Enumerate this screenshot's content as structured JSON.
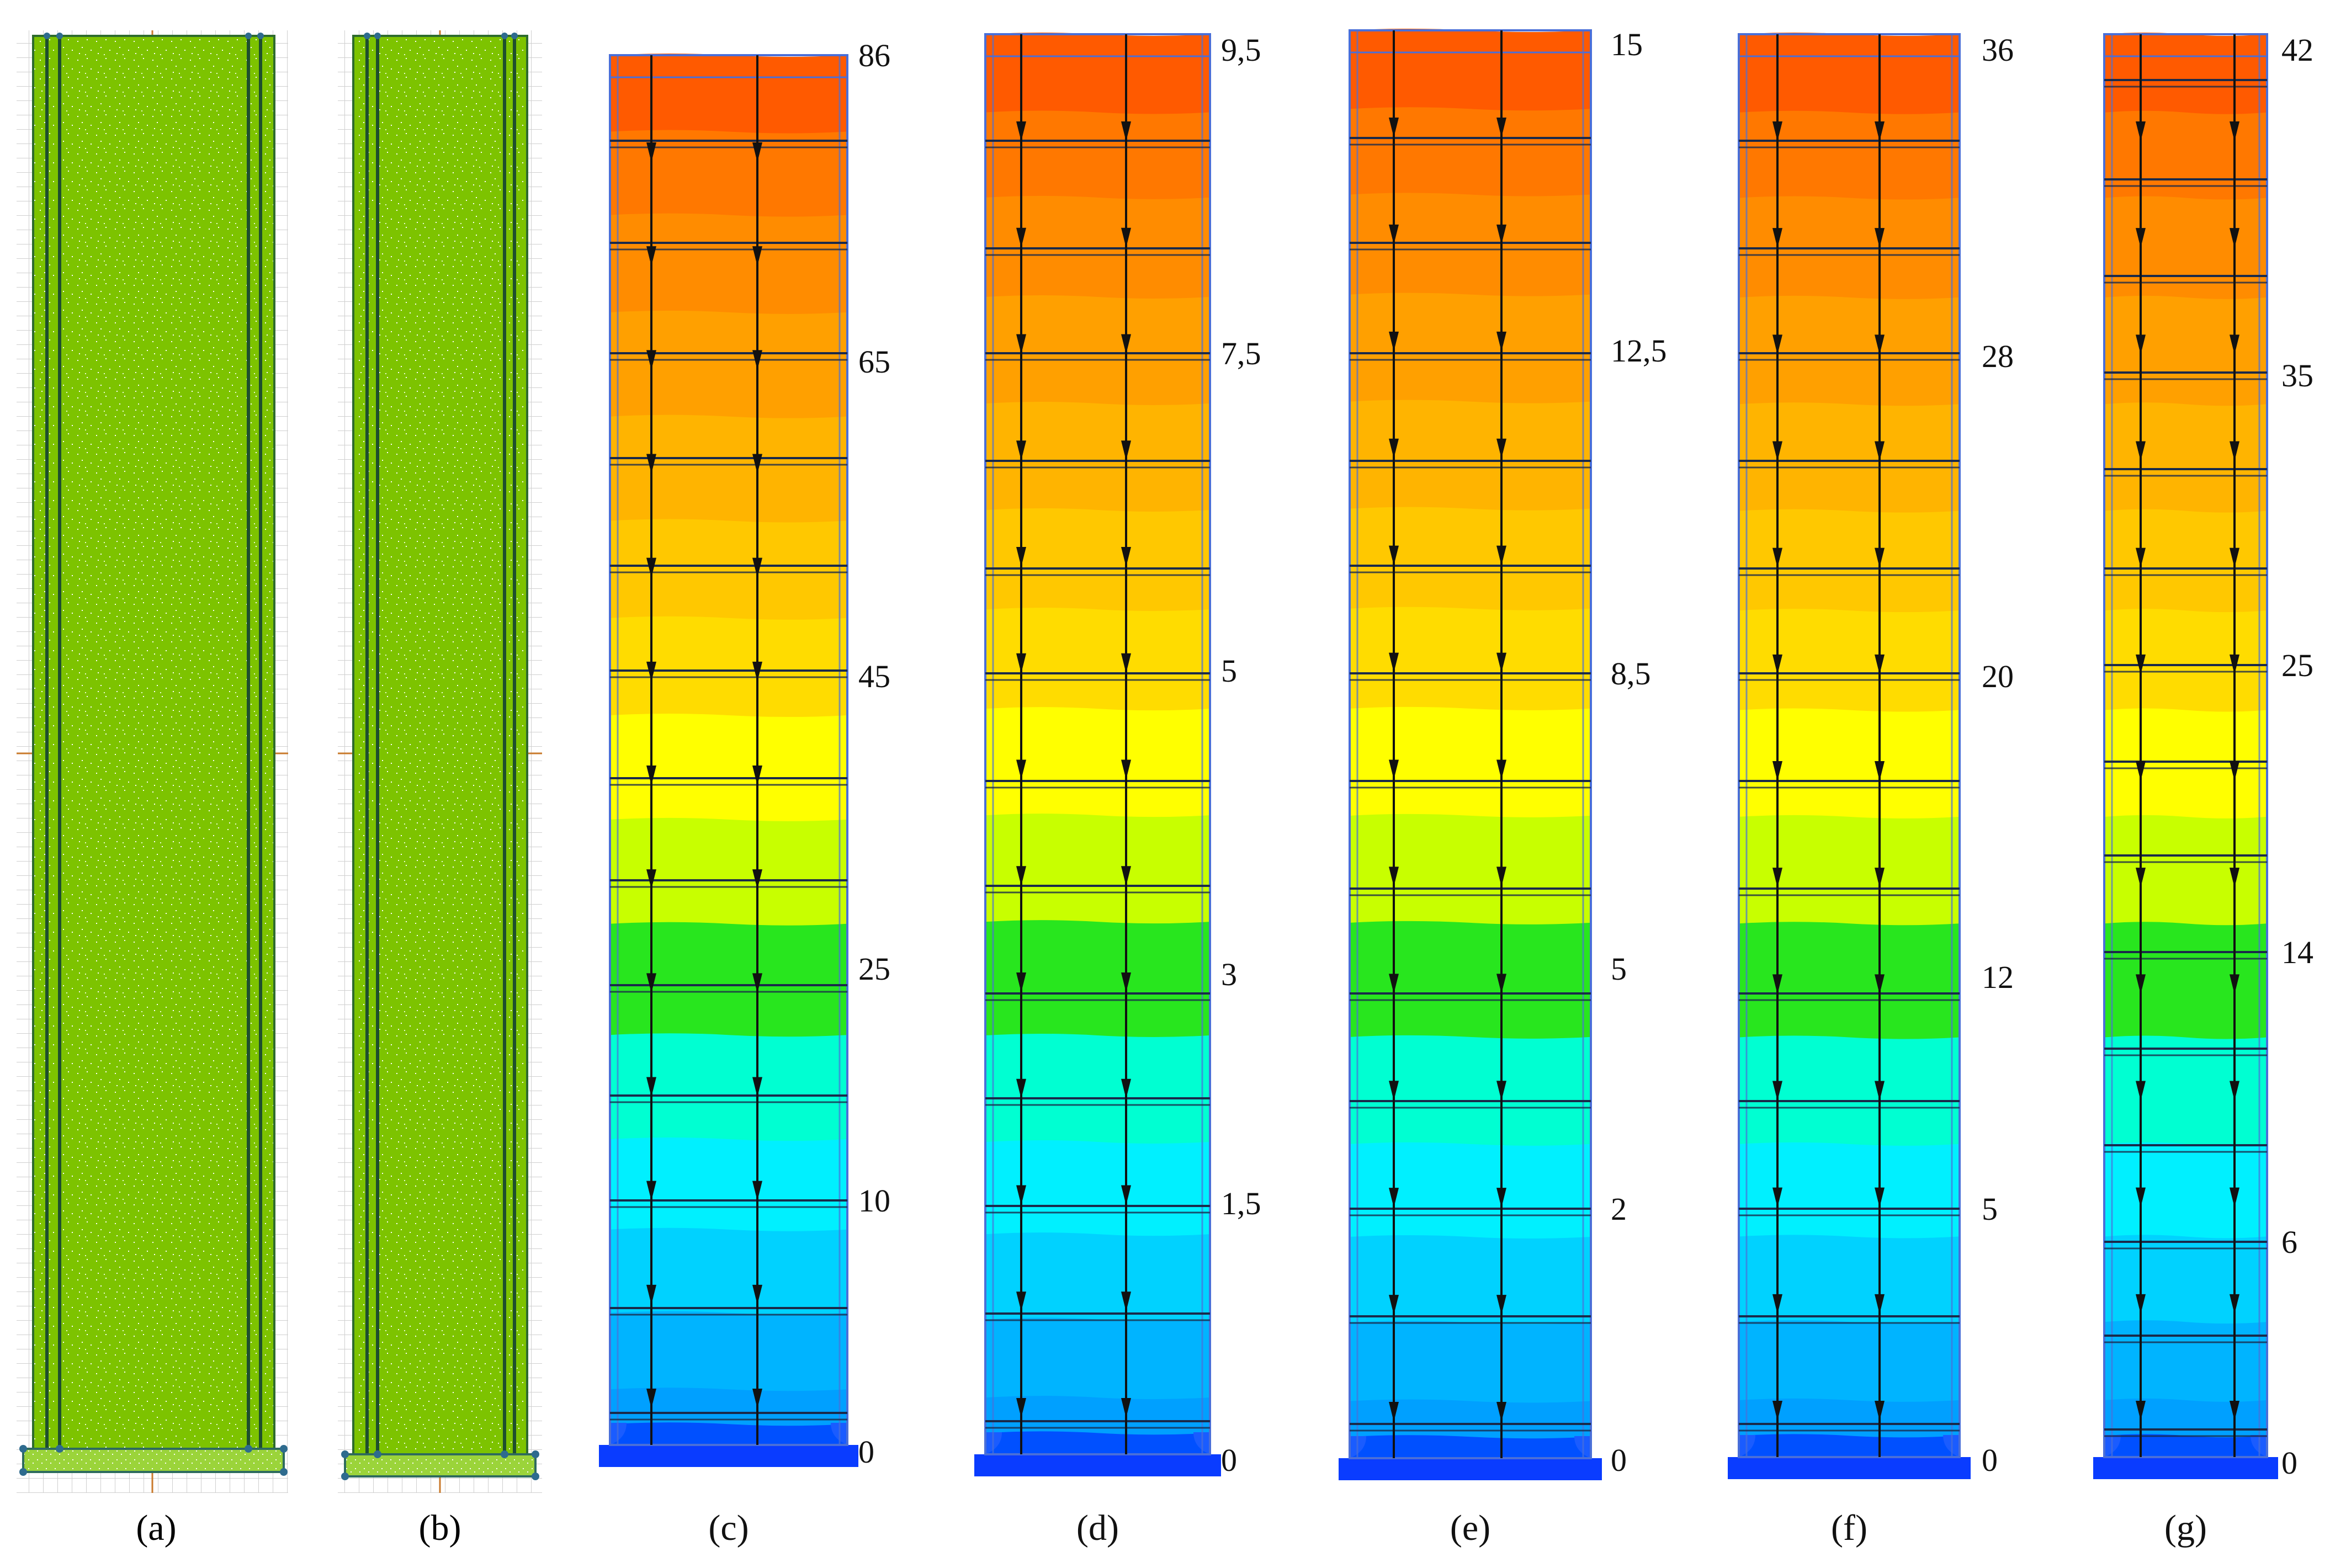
{
  "panels": [
    {
      "id": "a",
      "caption": "(a)",
      "kind": "mesh",
      "mesh_color": "#7dc300"
    },
    {
      "id": "b",
      "caption": "(b)",
      "kind": "mesh",
      "mesh_color": "#7dc300"
    },
    {
      "id": "c",
      "caption": "(c)",
      "kind": "contour",
      "scale_labels": [
        "86",
        "65",
        "45",
        "25",
        "10",
        "0"
      ],
      "scale_values": [
        86,
        65,
        45,
        25,
        10,
        0
      ]
    },
    {
      "id": "d",
      "caption": "(d)",
      "kind": "contour",
      "scale_labels": [
        "9,5",
        "7,5",
        "5",
        "3",
        "1,5",
        "0"
      ],
      "scale_values": [
        9.5,
        7.5,
        5,
        3,
        1.5,
        0
      ]
    },
    {
      "id": "e",
      "caption": "(e)",
      "kind": "contour",
      "scale_labels": [
        "15",
        "12,5",
        "8,5",
        "5",
        "2",
        "0"
      ],
      "scale_values": [
        15,
        12.5,
        8.5,
        5,
        2,
        0
      ]
    },
    {
      "id": "f",
      "caption": "(f)",
      "kind": "contour",
      "scale_labels": [
        "36",
        "28",
        "20",
        "12",
        "5",
        "0"
      ],
      "scale_values": [
        36,
        28,
        20,
        12,
        5,
        0
      ]
    },
    {
      "id": "g",
      "caption": "(g)",
      "kind": "contour",
      "scale_labels": [
        "42",
        "35",
        "25",
        "14",
        "6",
        "0"
      ],
      "scale_values": [
        42,
        35,
        25,
        14,
        6,
        0
      ]
    }
  ],
  "contour_colors_top_to_bottom": [
    "#ff5a00",
    "#ff7800",
    "#ff8c00",
    "#ffa000",
    "#ffb400",
    "#ffc800",
    "#ffdc00",
    "#ffff00",
    "#c8ff00",
    "#28e61e",
    "#00ffd2",
    "#00f0ff",
    "#00d2ff",
    "#00b4ff",
    "#00a0ff",
    "#0050ff"
  ],
  "base_plate_color": "#0a3cff",
  "outline_color": "#4a6fd8"
}
